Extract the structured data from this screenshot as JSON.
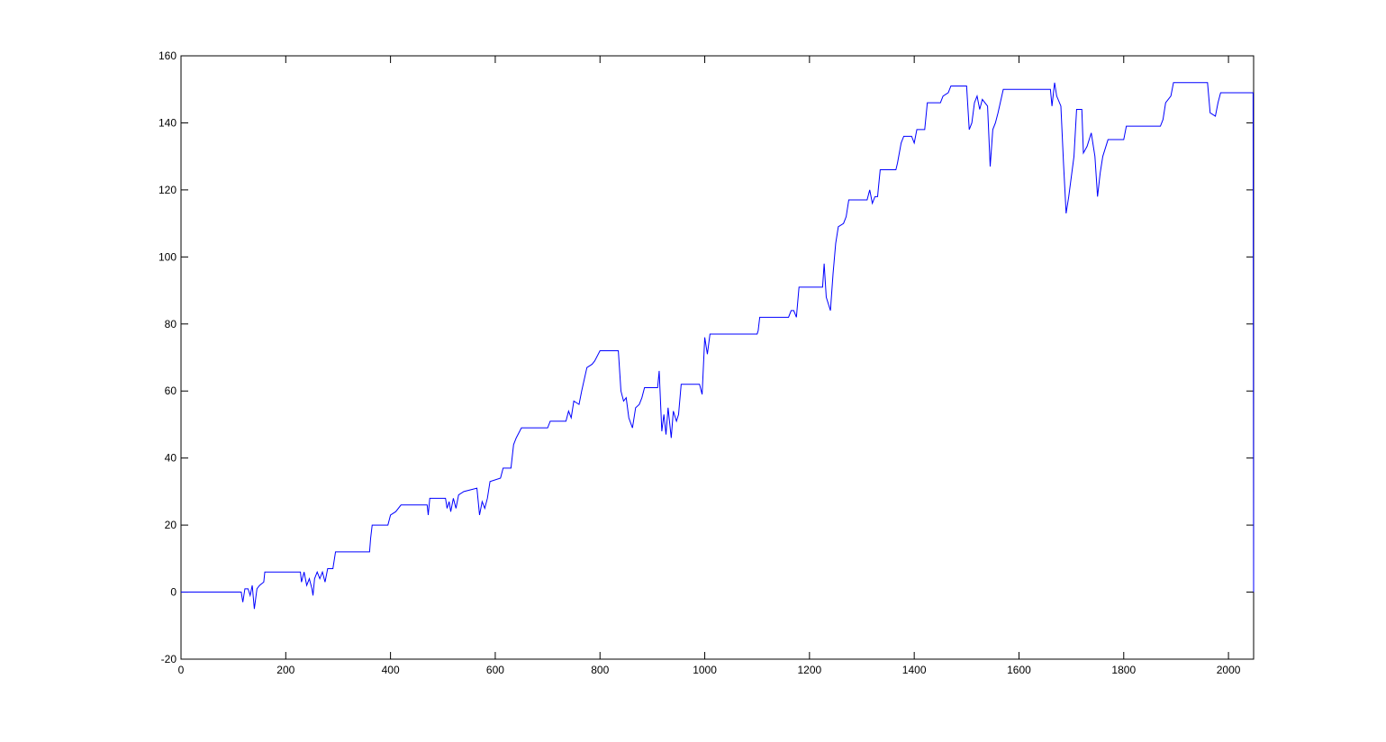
{
  "chart_data": {
    "type": "line",
    "x": [
      0,
      115,
      118,
      122,
      128,
      132,
      136,
      140,
      145,
      150,
      158,
      160,
      228,
      230,
      235,
      240,
      245,
      250,
      252,
      255,
      260,
      265,
      270,
      275,
      280,
      290,
      295,
      360,
      362,
      365,
      395,
      400,
      410,
      420,
      470,
      472,
      475,
      505,
      508,
      512,
      515,
      520,
      525,
      530,
      540,
      565,
      570,
      575,
      580,
      585,
      590,
      610,
      615,
      630,
      635,
      640,
      650,
      700,
      705,
      735,
      740,
      745,
      750,
      760,
      765,
      775,
      785,
      790,
      800,
      835,
      840,
      845,
      850,
      855,
      862,
      868,
      875,
      880,
      885,
      910,
      913,
      918,
      922,
      926,
      930,
      936,
      940,
      946,
      950,
      955,
      990,
      995,
      1000,
      1005,
      1010,
      1100,
      1102,
      1105,
      1160,
      1165,
      1170,
      1175,
      1180,
      1225,
      1228,
      1232,
      1240,
      1245,
      1250,
      1255,
      1265,
      1270,
      1275,
      1310,
      1315,
      1320,
      1325,
      1330,
      1335,
      1365,
      1368,
      1375,
      1380,
      1395,
      1400,
      1405,
      1420,
      1425,
      1450,
      1455,
      1465,
      1470,
      1500,
      1505,
      1510,
      1515,
      1520,
      1525,
      1530,
      1540,
      1545,
      1550,
      1555,
      1560,
      1570,
      1660,
      1663,
      1668,
      1672,
      1680,
      1685,
      1690,
      1695,
      1700,
      1705,
      1710,
      1720,
      1723,
      1730,
      1738,
      1745,
      1750,
      1755,
      1760,
      1770,
      1800,
      1805,
      1870,
      1875,
      1880,
      1890,
      1895,
      1960,
      1965,
      1975,
      1980,
      1985,
      2047,
      2048
    ],
    "series": [
      {
        "color": "#0000ff",
        "values": [
          0,
          0,
          -3,
          1,
          1,
          -1,
          2,
          -5,
          1,
          2,
          3,
          6,
          6,
          3,
          6,
          2,
          4,
          1,
          -1,
          4,
          6,
          4,
          6,
          3,
          7,
          7,
          12,
          12,
          16,
          20,
          20,
          23,
          24,
          26,
          26,
          23,
          28,
          28,
          25,
          27,
          24,
          28,
          25,
          29,
          30,
          31,
          23,
          27,
          25,
          28,
          33,
          34,
          37,
          37,
          44,
          46,
          49,
          49,
          51,
          51,
          54,
          52,
          57,
          56,
          60,
          67,
          68,
          69,
          72,
          72,
          60,
          57,
          58,
          52,
          49,
          55,
          56,
          58,
          61,
          61,
          66,
          48,
          53,
          47,
          55,
          46,
          54,
          51,
          53,
          62,
          62,
          59,
          76,
          71,
          77,
          77,
          78,
          82,
          82,
          84,
          84,
          82,
          91,
          91,
          98,
          88,
          84,
          95,
          104,
          109,
          110,
          112,
          117,
          117,
          120,
          116,
          118,
          118,
          126,
          126,
          128,
          134,
          136,
          136,
          134,
          138,
          138,
          146,
          146,
          148,
          149,
          151,
          151,
          138,
          140,
          146,
          148,
          144,
          147,
          145,
          127,
          138,
          140,
          143,
          150,
          150,
          145,
          152,
          148,
          145,
          128,
          113,
          118,
          124,
          130,
          144,
          144,
          131,
          133,
          137,
          130,
          118,
          125,
          130,
          135,
          135,
          139,
          139,
          141,
          146,
          148,
          152,
          152,
          143,
          142,
          146,
          149,
          149,
          0
        ]
      }
    ],
    "xlim": [
      0,
      2048
    ],
    "ylim": [
      -20,
      160
    ],
    "xticks": [
      0,
      200,
      400,
      600,
      800,
      1000,
      1200,
      1400,
      1600,
      1800,
      2000
    ],
    "yticks": [
      -20,
      0,
      20,
      40,
      60,
      80,
      100,
      120,
      140,
      160
    ]
  }
}
